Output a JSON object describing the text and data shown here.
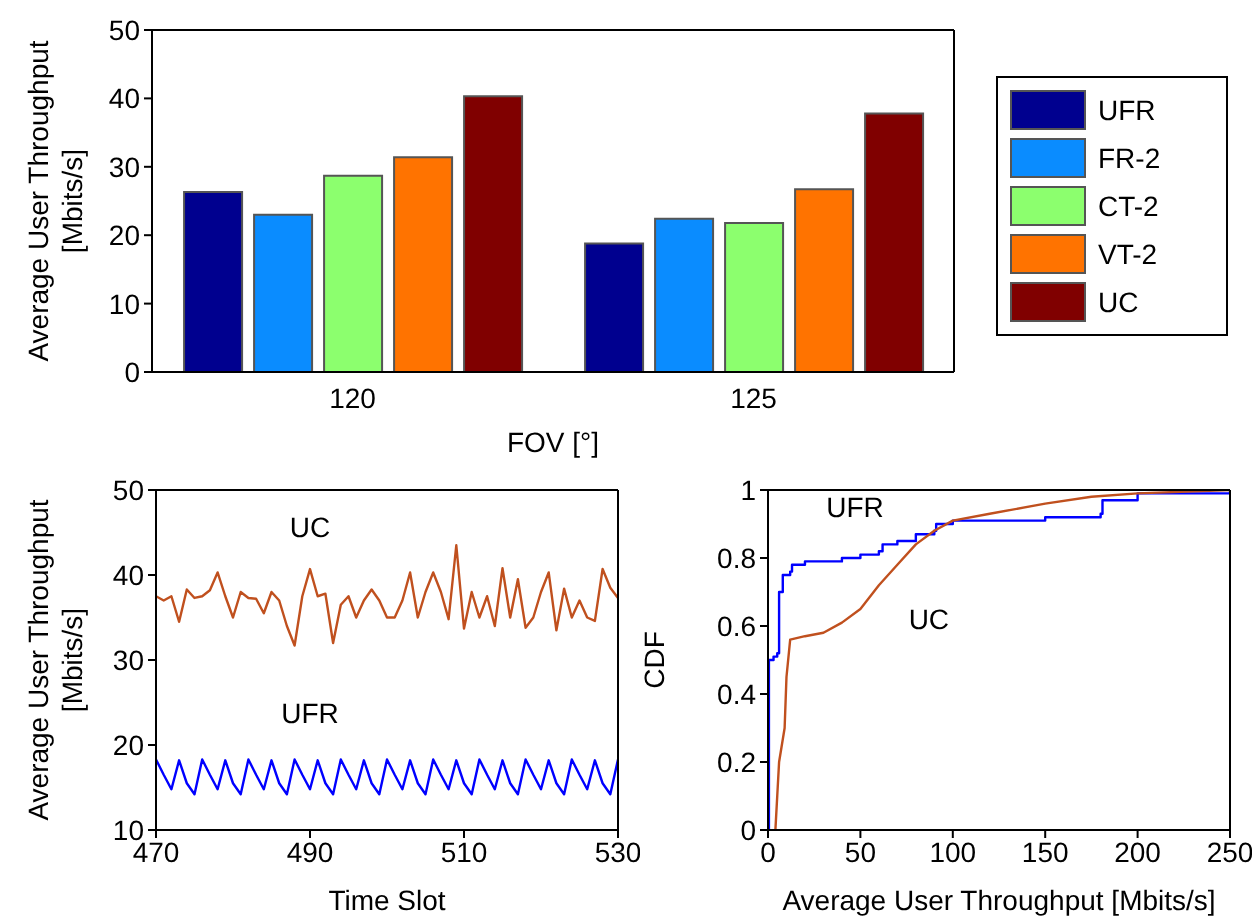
{
  "chart_data": [
    {
      "type": "bar",
      "xlabel": "FOV [°]",
      "ylabel": "Average User Throughput [Mbits/s]",
      "categories": [
        "120",
        "125"
      ],
      "ylim": [
        0,
        50
      ],
      "yticks": [
        0,
        10,
        20,
        30,
        40,
        50
      ],
      "legend": "right",
      "series": [
        {
          "name": "UFR",
          "color": "#00008f",
          "values": [
            26.3,
            18.8
          ]
        },
        {
          "name": "FR-2",
          "color": "#0a8cff",
          "values": [
            23,
            22.4
          ]
        },
        {
          "name": "CT-2",
          "color": "#8cff6e",
          "values": [
            28.7,
            21.8
          ]
        },
        {
          "name": "VT-2",
          "color": "#ff7300",
          "values": [
            31.4,
            26.7
          ]
        },
        {
          "name": "UC",
          "color": "#800000",
          "values": [
            40.3,
            37.8
          ]
        }
      ]
    },
    {
      "type": "line",
      "xlabel": "Time Slot",
      "ylabel": "Average User Throughput [Mbits/s]",
      "xlim": [
        470,
        530
      ],
      "xticks": [
        470,
        490,
        510,
        530
      ],
      "ylim": [
        10,
        50
      ],
      "yticks": [
        10,
        20,
        30,
        40,
        50
      ],
      "x": [
        470,
        471,
        472,
        473,
        474,
        475,
        476,
        477,
        478,
        479,
        480,
        481,
        482,
        483,
        484,
        485,
        486,
        487,
        488,
        489,
        490,
        491,
        492,
        493,
        494,
        495,
        496,
        497,
        498,
        499,
        500,
        501,
        502,
        503,
        504,
        505,
        506,
        507,
        508,
        509,
        510,
        511,
        512,
        513,
        514,
        515,
        516,
        517,
        518,
        519,
        520,
        521,
        522,
        523,
        524,
        525,
        526,
        527,
        528,
        529,
        530
      ],
      "series": [
        {
          "name": "UC",
          "color": "#c0501e",
          "values": [
            37.5,
            37,
            37.5,
            34.5,
            38.3,
            37.3,
            37.5,
            38.2,
            40.3,
            37.5,
            35,
            38,
            37.3,
            37.2,
            35.5,
            38,
            37,
            34,
            31.7,
            37.5,
            40.7,
            37.5,
            37.8,
            32,
            36.5,
            37.5,
            35,
            37,
            38.3,
            37,
            35,
            35,
            37,
            40.3,
            35,
            38,
            40.3,
            38,
            34.8,
            43.5,
            33.7,
            38,
            35,
            37.5,
            34,
            40.8,
            35,
            39.5,
            33.8,
            35,
            38,
            40.3,
            33.5,
            38.4,
            35,
            37,
            35,
            34.6,
            40.7,
            38.5,
            37.3
          ]
        },
        {
          "name": "UFR",
          "color": "#0000ff",
          "values": [
            18.3,
            16.5,
            14.8,
            18.2,
            15.5,
            14.2,
            18.3,
            16.5,
            14.8,
            18.2,
            15.5,
            14.2,
            18.3,
            16.5,
            14.8,
            18.2,
            15.5,
            14.2,
            18.3,
            16.5,
            14.8,
            18.2,
            15.5,
            14.2,
            18.3,
            16.5,
            14.8,
            18.2,
            15.5,
            14.2,
            18.3,
            16.5,
            14.8,
            18.2,
            15.5,
            14.2,
            18.3,
            16.5,
            14.8,
            18.2,
            15.5,
            14.2,
            18.3,
            16.5,
            14.8,
            18.2,
            15.5,
            14.2,
            18.3,
            16.5,
            14.8,
            18.2,
            15.5,
            14.2,
            18.3,
            16.5,
            14.8,
            18.2,
            15.5,
            14.2,
            18.3
          ]
        }
      ]
    },
    {
      "type": "line",
      "xlabel": "Average User Throughput [Mbits/s]",
      "ylabel": "CDF",
      "xlim": [
        0,
        250
      ],
      "xticks": [
        0,
        50,
        100,
        150,
        200,
        250
      ],
      "ylim": [
        0,
        1
      ],
      "yticks": [
        0,
        0.2,
        0.4,
        0.6,
        0.8,
        1
      ],
      "series": [
        {
          "name": "UFR",
          "type": "step",
          "color": "#0000ff",
          "x": [
            0,
            0.5,
            3,
            5,
            6,
            8,
            12,
            13,
            20,
            40,
            50,
            60,
            62,
            70,
            80,
            90,
            91,
            100,
            150,
            180,
            181,
            200,
            250
          ],
          "values": [
            0,
            0.5,
            0.51,
            0.52,
            0.7,
            0.75,
            0.76,
            0.78,
            0.79,
            0.8,
            0.81,
            0.82,
            0.84,
            0.85,
            0.87,
            0.88,
            0.9,
            0.91,
            0.92,
            0.93,
            0.97,
            0.99,
            1
          ]
        },
        {
          "name": "UC",
          "color": "#c0501e",
          "x": [
            4,
            5,
            6,
            9,
            10,
            12,
            20,
            30,
            40,
            50,
            60,
            70,
            80,
            90,
            100,
            120,
            150,
            175,
            200,
            250
          ],
          "values": [
            0,
            0.1,
            0.2,
            0.3,
            0.45,
            0.56,
            0.57,
            0.58,
            0.61,
            0.65,
            0.72,
            0.78,
            0.84,
            0.88,
            0.91,
            0.93,
            0.96,
            0.98,
            0.99,
            1
          ]
        }
      ]
    }
  ]
}
